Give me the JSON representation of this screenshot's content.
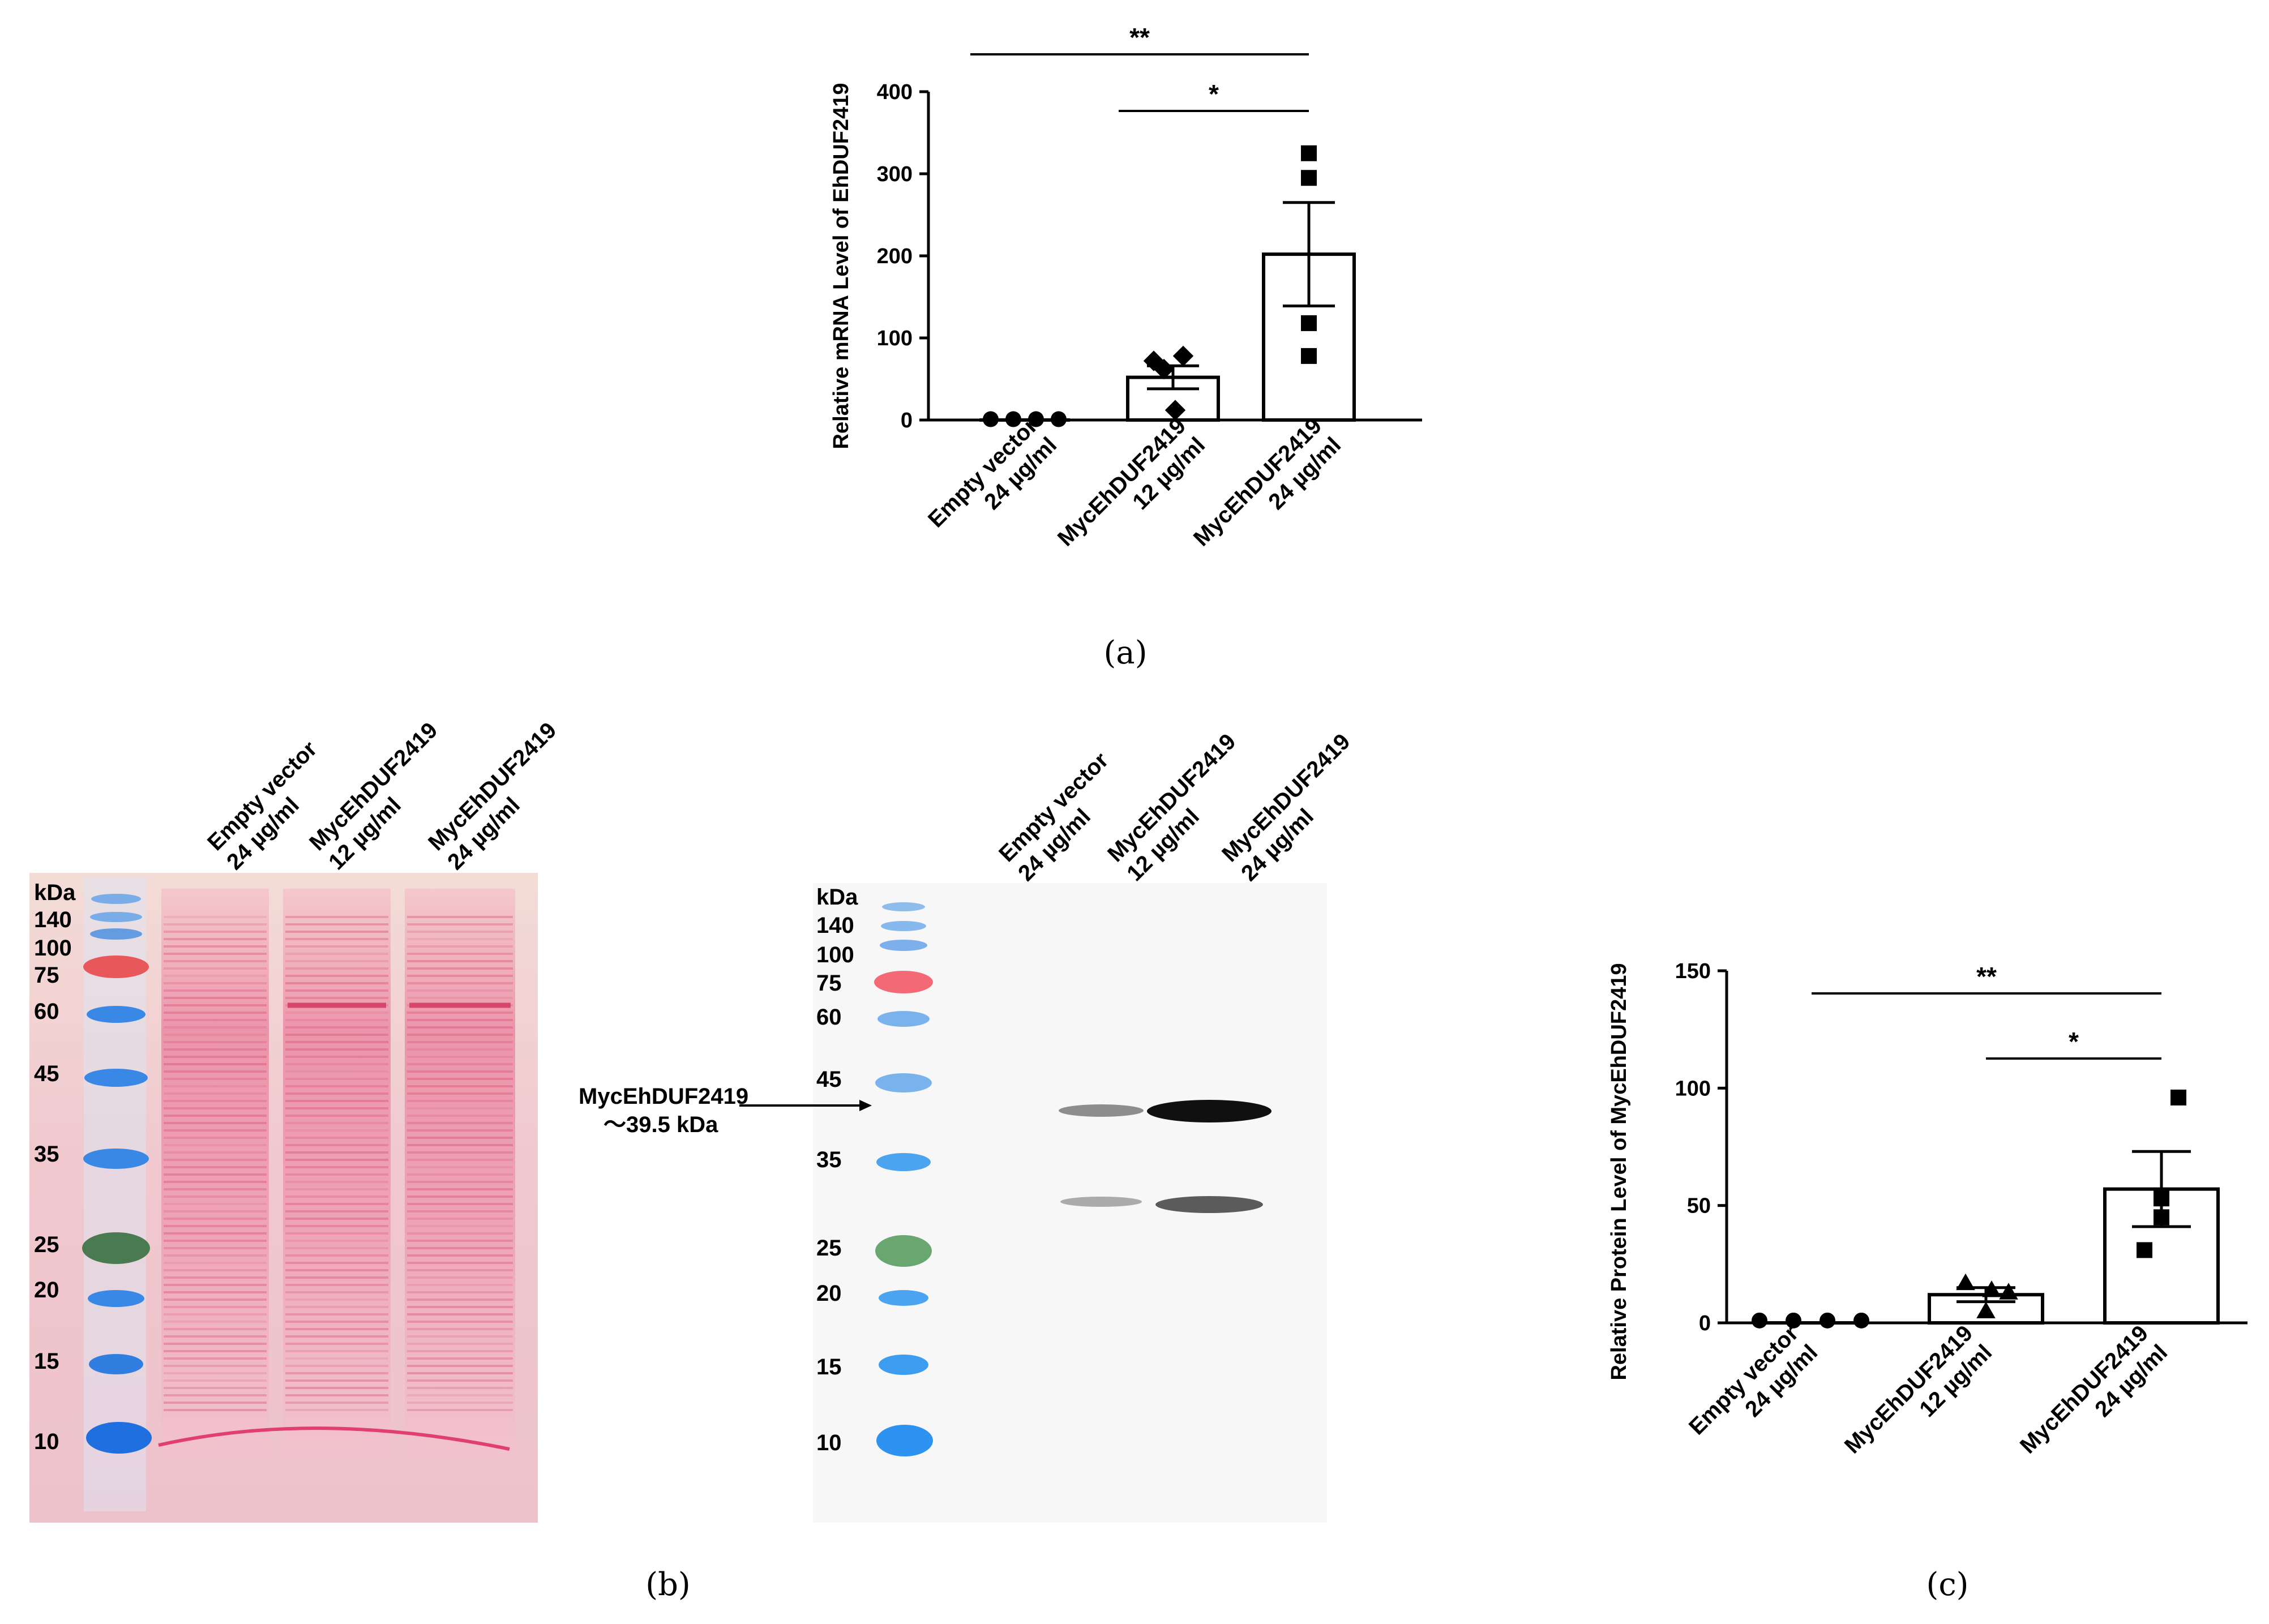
{
  "panel_labels": {
    "a": "(a)",
    "b": "(b)",
    "c": "(c)"
  },
  "lane_labels": [
    {
      "line1": "Empty vector",
      "line2": "24 µg/ml"
    },
    {
      "line1": "MycEhDUF2419",
      "line2": "12 µg/ml"
    },
    {
      "line1": "MycEhDUF2419",
      "line2": "24 µg/ml"
    }
  ],
  "ladder": {
    "unit": "kDa",
    "markers": [
      "140",
      "100",
      "75",
      "60",
      "45",
      "35",
      "25",
      "20",
      "15",
      "10"
    ]
  },
  "western": {
    "arrow_label_1": "MycEhDUF2419",
    "arrow_label_2": "～39.5 kDa"
  },
  "colors": {
    "axis": "#000000",
    "bar_fill": "#ffffff",
    "ponceau_bg": "#f2cfd0",
    "ponceau_band": "#e0506e",
    "ladder_blue": "#3a88e6",
    "ladder_red": "#e85050",
    "ladder_green": "#4a7a50"
  },
  "chart_data": [
    {
      "type": "bar",
      "id": "a",
      "title": "",
      "ylabel": "Relative mRNA Level of EhDUF2419",
      "xlabel": "",
      "ylim": [
        0,
        400
      ],
      "yticks": [
        "0",
        "100",
        "200",
        "300",
        "400"
      ],
      "categories": [
        "Empty vector 24 µg/ml",
        "MycEhDUF2419 12 µg/ml",
        "MycEhDUF2419 24 µg/ml"
      ],
      "values": [
        1,
        52,
        202
      ],
      "sem": [
        0,
        14,
        63
      ],
      "points": [
        [
          1,
          1,
          1,
          1
        ],
        [
          72,
          62,
          78,
          12
        ],
        [
          325,
          295,
          118,
          78
        ]
      ],
      "markers": [
        "circle",
        "diamond",
        "square"
      ],
      "significance": [
        {
          "from": 0,
          "to": 2,
          "label": "**"
        },
        {
          "from": 1,
          "to": 2,
          "label": "*"
        }
      ]
    },
    {
      "type": "bar",
      "id": "c",
      "title": "",
      "ylabel": "Relative Protein Level of MycEhDUF2419",
      "xlabel": "",
      "ylim": [
        0,
        150
      ],
      "yticks": [
        "0",
        "50",
        "100",
        "150"
      ],
      "categories": [
        "Empty vector 24 µg/ml",
        "MycEhDUF2419 12 µg/ml",
        "MycEhDUF2419 24 µg/ml"
      ],
      "values": [
        1,
        12,
        57
      ],
      "sem": [
        0,
        3,
        16
      ],
      "points": [
        [
          1,
          1,
          1,
          1
        ],
        [
          17,
          13,
          14,
          5
        ],
        [
          96,
          53,
          45,
          31
        ]
      ],
      "markers": [
        "circle",
        "triangle",
        "square"
      ],
      "significance": [
        {
          "from": 0,
          "to": 2,
          "label": "**"
        },
        {
          "from": 1,
          "to": 2,
          "label": "*"
        }
      ]
    }
  ]
}
